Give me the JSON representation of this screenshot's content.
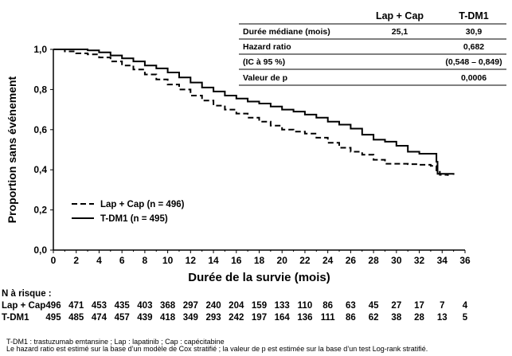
{
  "chart_data": {
    "type": "line",
    "title": "",
    "xlabel": "Durée de la survie (mois)",
    "ylabel": "Proportion sans événement",
    "xlim": [
      0,
      36
    ],
    "ylim": [
      0.0,
      1.0
    ],
    "x_ticks": [
      "0",
      "2",
      "4",
      "6",
      "8",
      "10",
      "12",
      "14",
      "16",
      "18",
      "20",
      "22",
      "24",
      "26",
      "28",
      "30",
      "32",
      "34",
      "36"
    ],
    "y_ticks": [
      "0,0",
      "0,2",
      "0,4",
      "0,6",
      "0,8",
      "1,0"
    ],
    "grid": false,
    "legend_position": "bottom-left",
    "series": [
      {
        "name": "Lap + Cap (n = 496)",
        "style": "dashed",
        "points": [
          [
            0,
            1.0
          ],
          [
            1,
            0.99
          ],
          [
            2,
            0.98
          ],
          [
            3,
            0.975
          ],
          [
            4,
            0.96
          ],
          [
            5,
            0.94
          ],
          [
            6,
            0.92
          ],
          [
            7,
            0.9
          ],
          [
            8,
            0.875
          ],
          [
            9,
            0.85
          ],
          [
            10,
            0.825
          ],
          [
            11,
            0.8
          ],
          [
            12,
            0.77
          ],
          [
            13,
            0.745
          ],
          [
            14,
            0.72
          ],
          [
            15,
            0.7
          ],
          [
            16,
            0.68
          ],
          [
            17,
            0.66
          ],
          [
            18,
            0.64
          ],
          [
            19,
            0.62
          ],
          [
            20,
            0.6
          ],
          [
            21,
            0.59
          ],
          [
            22,
            0.58
          ],
          [
            23,
            0.56
          ],
          [
            24,
            0.535
          ],
          [
            25,
            0.51
          ],
          [
            26,
            0.49
          ],
          [
            27,
            0.475
          ],
          [
            28,
            0.45
          ],
          [
            29,
            0.43
          ],
          [
            30,
            0.43
          ],
          [
            31,
            0.428
          ],
          [
            32,
            0.425
          ],
          [
            33,
            0.42
          ],
          [
            33.4,
            0.42
          ],
          [
            33.5,
            0.39
          ],
          [
            33.8,
            0.375
          ],
          [
            34.5,
            0.37
          ]
        ]
      },
      {
        "name": "T-DM1 (n = 495)",
        "style": "solid",
        "points": [
          [
            0,
            1.0
          ],
          [
            1,
            1.0
          ],
          [
            2,
            1.0
          ],
          [
            3,
            0.995
          ],
          [
            4,
            0.985
          ],
          [
            5,
            0.97
          ],
          [
            6,
            0.955
          ],
          [
            7,
            0.94
          ],
          [
            8,
            0.92
          ],
          [
            9,
            0.905
          ],
          [
            10,
            0.885
          ],
          [
            11,
            0.86
          ],
          [
            12,
            0.835
          ],
          [
            13,
            0.81
          ],
          [
            14,
            0.79
          ],
          [
            15,
            0.77
          ],
          [
            16,
            0.755
          ],
          [
            17,
            0.74
          ],
          [
            18,
            0.73
          ],
          [
            19,
            0.715
          ],
          [
            20,
            0.7
          ],
          [
            21,
            0.69
          ],
          [
            22,
            0.675
          ],
          [
            23,
            0.66
          ],
          [
            24,
            0.64
          ],
          [
            25,
            0.625
          ],
          [
            26,
            0.605
          ],
          [
            27,
            0.575
          ],
          [
            28,
            0.55
          ],
          [
            29,
            0.54
          ],
          [
            30,
            0.52
          ],
          [
            31,
            0.49
          ],
          [
            32,
            0.48
          ],
          [
            33,
            0.48
          ],
          [
            33.4,
            0.48
          ],
          [
            33.5,
            0.44
          ],
          [
            33.6,
            0.38
          ],
          [
            34,
            0.38
          ],
          [
            35,
            0.375
          ]
        ]
      }
    ],
    "legend": [
      {
        "label": "Lap + Cap (n = 496)",
        "style": "dashed"
      },
      {
        "label": "T-DM1 (n = 495)",
        "style": "solid"
      }
    ],
    "stats_table": {
      "headers": [
        "",
        "Lap + Cap",
        "T-DM1"
      ],
      "rows": [
        [
          "Durée médiane (mois)",
          "25,1",
          "30,9"
        ],
        [
          "Hazard ratio",
          "",
          "0,682"
        ],
        [
          "(IC à 95 %)",
          "",
          "(0,548 – 0,849)"
        ],
        [
          "Valeur de p",
          "",
          "0,0006"
        ]
      ]
    },
    "risk_table": {
      "title": "N à risque :",
      "rows": [
        {
          "label": "Lap + Cap",
          "values": [
            "496",
            "471",
            "453",
            "435",
            "403",
            "368",
            "297",
            "240",
            "204",
            "159",
            "133",
            "110",
            "86",
            "63",
            "45",
            "27",
            "17",
            "7",
            "4"
          ]
        },
        {
          "label": "T-DM1",
          "values": [
            "495",
            "485",
            "474",
            "457",
            "439",
            "418",
            "349",
            "293",
            "242",
            "197",
            "164",
            "136",
            "111",
            "86",
            "62",
            "38",
            "28",
            "13",
            "5"
          ]
        }
      ]
    }
  },
  "footnotes": [
    "T-DM1 : trastuzumab emtansine ; Lap : lapatinib ; Cap : capécitabine",
    "Le hazard ratio est estimé sur la base d’un modèle de Cox stratifié ; la valeur de p est estimée sur la base d’un test Log-rank stratifié."
  ]
}
